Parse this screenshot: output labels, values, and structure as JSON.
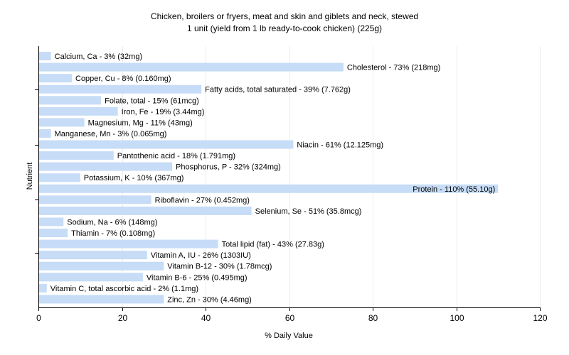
{
  "chart_data": {
    "type": "bar",
    "orientation": "horizontal",
    "title": "Chicken, broilers or fryers, meat and skin and giblets and neck, stewed",
    "subtitle": "1 unit (yield from 1 lb ready-to-cook chicken) (225g)",
    "xlabel": "% Daily Value",
    "ylabel": "Nutrient",
    "xlim": [
      0,
      120
    ],
    "xticks": [
      "0",
      "20",
      "40",
      "60",
      "80",
      "100",
      "120"
    ],
    "grid": "vertical",
    "bar_color": "#c6dcf7",
    "categories": [
      "Calcium, Ca",
      "Cholesterol",
      "Copper, Cu",
      "Fatty acids, total saturated",
      "Folate, total",
      "Iron, Fe",
      "Magnesium, Mg",
      "Manganese, Mn",
      "Niacin",
      "Pantothenic acid",
      "Phosphorus, P",
      "Potassium, K",
      "Protein",
      "Riboflavin",
      "Selenium, Se",
      "Sodium, Na",
      "Thiamin",
      "Total lipid (fat)",
      "Vitamin A, IU",
      "Vitamin B-12",
      "Vitamin B-6",
      "Vitamin C, total ascorbic acid",
      "Zinc, Zn"
    ],
    "values": [
      3,
      73,
      8,
      39,
      15,
      19,
      11,
      3,
      61,
      18,
      32,
      10,
      110,
      27,
      51,
      6,
      7,
      43,
      26,
      30,
      25,
      2,
      30
    ],
    "labels": [
      "Calcium, Ca - 3% (32mg)",
      "Cholesterol - 73% (218mg)",
      "Copper, Cu - 8% (0.160mg)",
      "Fatty acids, total saturated - 39% (7.762g)",
      "Folate, total - 15% (61mcg)",
      "Iron, Fe - 19% (3.44mg)",
      "Magnesium, Mg - 11% (43mg)",
      "Manganese, Mn - 3% (0.065mg)",
      "Niacin - 61% (12.125mg)",
      "Pantothenic acid - 18% (1.791mg)",
      "Phosphorus, P - 32% (324mg)",
      "Potassium, K - 10% (367mg)",
      "Protein - 110% (55.10g)",
      "Riboflavin - 27% (0.452mg)",
      "Selenium, Se - 51% (35.8mcg)",
      "Sodium, Na - 6% (148mg)",
      "Thiamin - 7% (0.108mg)",
      "Total lipid (fat) - 43% (27.83g)",
      "Vitamin A, IU - 26% (1303IU)",
      "Vitamin B-12 - 30% (1.78mcg)",
      "Vitamin B-6 - 25% (0.495mg)",
      "Vitamin C, total ascorbic acid - 2% (1.1mg)",
      "Zinc, Zn - 30% (4.46mg)"
    ]
  }
}
